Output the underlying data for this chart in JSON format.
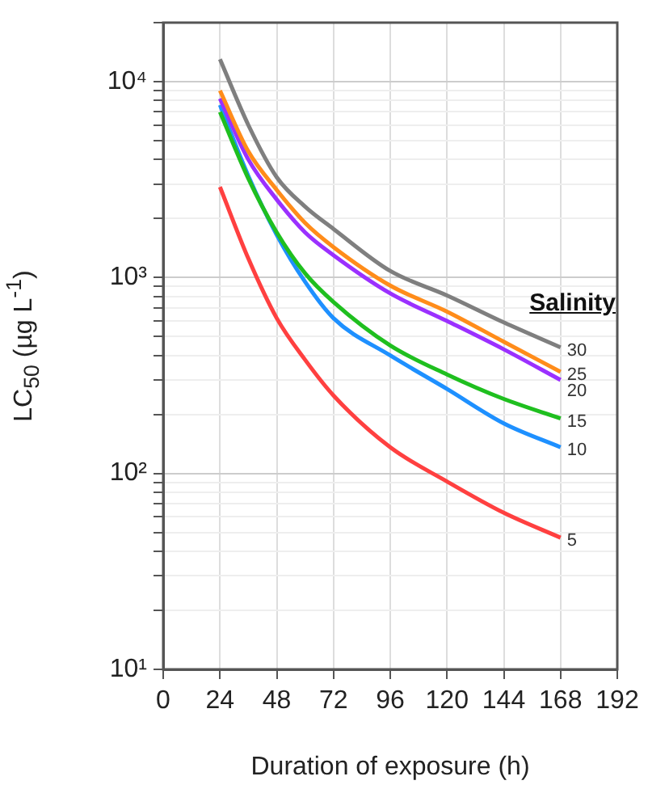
{
  "chart_data": {
    "type": "line",
    "xlabel": "Duration of exposure (h)",
    "ylabel": "LC$_{50}$ (µg L$^{-1}$)",
    "legend_title": "Salinity",
    "log": "y",
    "grid": true,
    "legend": false,
    "marker": "none",
    "line_style": "solid",
    "x": [
      24,
      36,
      48,
      60,
      72,
      96,
      120,
      144,
      168
    ],
    "xlim": [
      0,
      192
    ],
    "xticks": [
      0,
      24,
      48,
      72,
      96,
      120,
      144,
      168,
      192
    ],
    "ylim": [
      10,
      20000
    ],
    "yticks": [
      {
        "value": 10,
        "label": "10¹"
      },
      {
        "value": 20,
        "label": null
      },
      {
        "value": 30,
        "label": null
      },
      {
        "value": 40,
        "label": null
      },
      {
        "value": 50,
        "label": null
      },
      {
        "value": 60,
        "label": null
      },
      {
        "value": 70,
        "label": null
      },
      {
        "value": 80,
        "label": null
      },
      {
        "value": 90,
        "label": null
      },
      {
        "value": 100,
        "label": "10²"
      },
      {
        "value": 200,
        "label": null
      },
      {
        "value": 300,
        "label": null
      },
      {
        "value": 400,
        "label": null
      },
      {
        "value": 500,
        "label": null
      },
      {
        "value": 600,
        "label": null
      },
      {
        "value": 700,
        "label": null
      },
      {
        "value": 800,
        "label": null
      },
      {
        "value": 900,
        "label": null
      },
      {
        "value": 1000,
        "label": "10³"
      },
      {
        "value": 2000,
        "label": null
      },
      {
        "value": 3000,
        "label": null
      },
      {
        "value": 4000,
        "label": null
      },
      {
        "value": 5000,
        "label": null
      },
      {
        "value": 6000,
        "label": null
      },
      {
        "value": 7000,
        "label": null
      },
      {
        "value": 8000,
        "label": null
      },
      {
        "value": 9000,
        "label": null
      },
      {
        "value": 10000,
        "label": "10⁴"
      },
      {
        "value": 20000,
        "label": null
      }
    ],
    "series": [
      {
        "name": "30",
        "color": "#7f7f7f",
        "values": [
          13000,
          6000,
          3250,
          2300,
          1770,
          1080,
          810,
          590,
          440
        ]
      },
      {
        "name": "25",
        "color": "#ff8c1a",
        "values": [
          9000,
          4400,
          2800,
          1900,
          1430,
          910,
          670,
          470,
          330
        ]
      },
      {
        "name": "20",
        "color": "#9b30ff",
        "values": [
          8200,
          4000,
          2500,
          1700,
          1300,
          830,
          600,
          430,
          300
        ]
      },
      {
        "name": "15",
        "color": "#1fbf1f",
        "values": [
          7000,
          3200,
          1700,
          1050,
          750,
          450,
          320,
          240,
          191
        ]
      },
      {
        "name": "10",
        "color": "#1e90ff",
        "values": [
          7600,
          3300,
          1650,
          950,
          620,
          400,
          270,
          180,
          136
        ]
      },
      {
        "name": "5",
        "color": "#ff4040",
        "values": [
          2900,
          1250,
          620,
          380,
          250,
          136,
          91,
          63,
          47
        ]
      }
    ]
  }
}
